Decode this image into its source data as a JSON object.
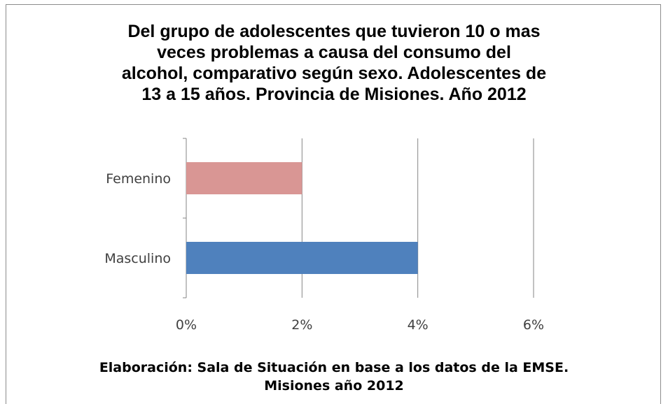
{
  "chart_data": {
    "type": "bar",
    "orientation": "horizontal",
    "title_lines": [
      "Del grupo de adolescentes que tuvieron 10 o mas",
      "veces problemas  a causa del consumo del",
      "alcohol, comparativo según sexo. Adolescentes de",
      "13 a 15 años. Provincia de Misiones. Año 2012"
    ],
    "categories": [
      "Femenino",
      "Masculino"
    ],
    "values": [
      2,
      4
    ],
    "colors": [
      "#D99694",
      "#4F81BD"
    ],
    "xlim": [
      0,
      6
    ],
    "xticks": [
      0,
      2,
      4,
      6
    ],
    "xtick_labels": [
      "0%",
      "2%",
      "4%",
      "6%"
    ],
    "grid": "vertical",
    "legend": "none",
    "xlabel": "",
    "ylabel": ""
  },
  "footer": {
    "line1": "Elaboración: Sala de Situación en base a los datos de la EMSE.",
    "line2": "Misiones año 2012"
  }
}
